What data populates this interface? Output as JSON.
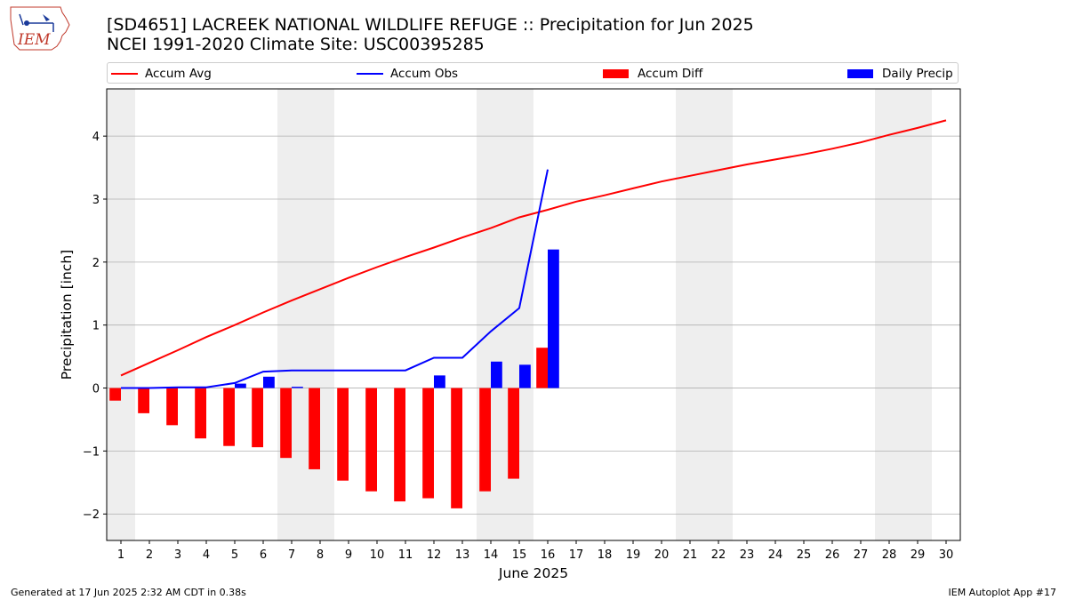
{
  "header": {
    "title_line1": "[SD4651] LACREEK NATIONAL WILDLIFE REFUGE :: Precipitation for Jun 2025",
    "title_line2": "NCEI 1991-2020 Climate Site: USC00395285",
    "logo_text": "IEM"
  },
  "legend": {
    "accum_avg": "Accum Avg",
    "accum_obs": "Accum Obs",
    "accum_diff": "Accum Diff",
    "daily_precip": "Daily Precip"
  },
  "footer": {
    "generated": "Generated at 17 Jun 2025 2:32 AM CDT in 0.38s",
    "app": "IEM Autoplot App #17"
  },
  "colors": {
    "accum_avg": "#ff0000",
    "accum_obs": "#0000ff",
    "accum_diff": "#ff0000",
    "daily_precip": "#0000ff",
    "weekend_shade": "#eeeeee",
    "grid": "#b0b0b0"
  },
  "chart_data": {
    "type": "bar",
    "xlabel": "June 2025",
    "ylabel": "Precipitation [inch]",
    "xlim": [
      0.5,
      30.5
    ],
    "ylim": [
      -2.42,
      4.75
    ],
    "yticks": [
      -2,
      -1,
      0,
      1,
      2,
      3,
      4
    ],
    "ytick_labels": [
      "−2",
      "−1",
      "0",
      "1",
      "2",
      "3",
      "4"
    ],
    "days": [
      1,
      2,
      3,
      4,
      5,
      6,
      7,
      8,
      9,
      10,
      11,
      12,
      13,
      14,
      15,
      16,
      17,
      18,
      19,
      20,
      21,
      22,
      23,
      24,
      25,
      26,
      27,
      28,
      29,
      30
    ],
    "weekend_days": [
      1,
      7,
      8,
      14,
      15,
      21,
      22,
      28,
      29
    ],
    "grid": "horizontal",
    "legend_position": "top",
    "series": [
      {
        "name": "Accum Avg",
        "kind": "line",
        "x": [
          1,
          2,
          3,
          4,
          5,
          6,
          7,
          8,
          9,
          10,
          11,
          12,
          13,
          14,
          15,
          16,
          17,
          18,
          19,
          20,
          21,
          22,
          23,
          24,
          25,
          26,
          27,
          28,
          29,
          30
        ],
        "values": [
          0.2,
          0.4,
          0.6,
          0.81,
          1.0,
          1.2,
          1.39,
          1.57,
          1.75,
          1.92,
          2.08,
          2.23,
          2.39,
          2.54,
          2.71,
          2.83,
          2.96,
          3.06,
          3.17,
          3.28,
          3.37,
          3.46,
          3.55,
          3.63,
          3.71,
          3.8,
          3.9,
          4.02,
          4.13,
          4.25
        ]
      },
      {
        "name": "Accum Obs",
        "kind": "line",
        "x": [
          1,
          2,
          3,
          4,
          5,
          6,
          7,
          8,
          9,
          10,
          11,
          12,
          13,
          14,
          15,
          16
        ],
        "values": [
          0.0,
          0.0,
          0.01,
          0.01,
          0.08,
          0.26,
          0.28,
          0.28,
          0.28,
          0.28,
          0.28,
          0.48,
          0.48,
          0.9,
          1.27,
          3.47
        ]
      },
      {
        "name": "Accum Diff",
        "kind": "bar",
        "x": [
          1,
          2,
          3,
          4,
          5,
          6,
          7,
          8,
          9,
          10,
          11,
          12,
          13,
          14,
          15,
          16
        ],
        "values": [
          -0.2,
          -0.4,
          -0.59,
          -0.8,
          -0.92,
          -0.94,
          -1.11,
          -1.29,
          -1.47,
          -1.64,
          -1.8,
          -1.75,
          -1.91,
          -1.64,
          -1.44,
          0.64
        ]
      },
      {
        "name": "Daily Precip",
        "kind": "bar",
        "x": [
          1,
          2,
          3,
          4,
          5,
          6,
          7,
          8,
          9,
          10,
          11,
          12,
          13,
          14,
          15,
          16
        ],
        "values": [
          0,
          0,
          0.01,
          0,
          0.07,
          0.18,
          0.02,
          0,
          0,
          0,
          0,
          0.2,
          0,
          0.42,
          0.37,
          2.2
        ]
      }
    ]
  }
}
